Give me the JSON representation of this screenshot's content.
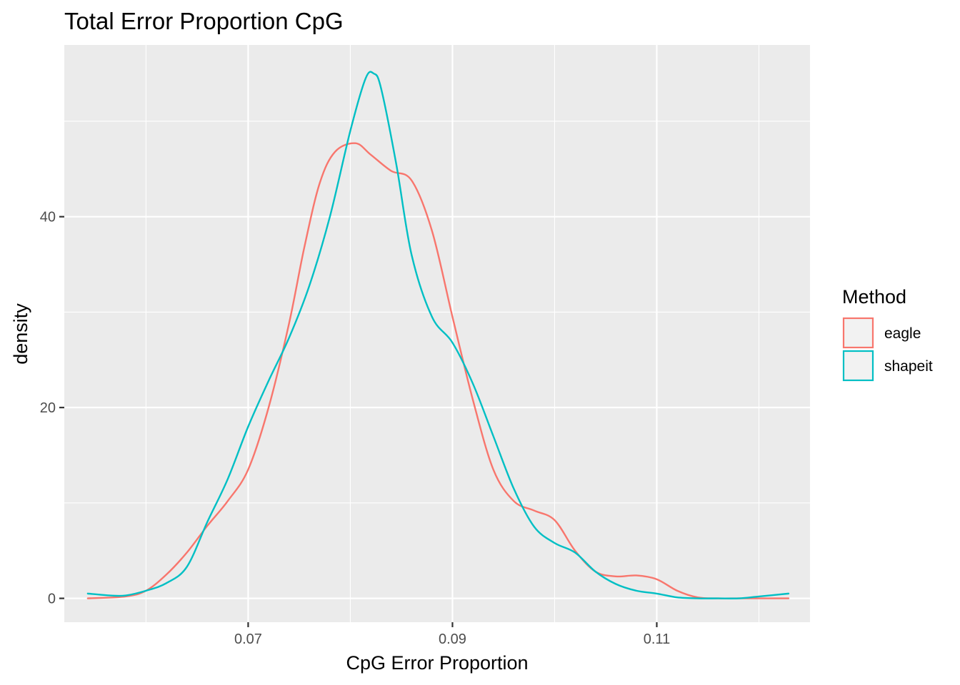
{
  "chart_data": {
    "type": "line",
    "title": "Total Error Proportion CpG",
    "xlabel": "CpG Error Proportion",
    "ylabel": "density",
    "xlim": [
      0.052,
      0.125
    ],
    "ylim": [
      -2.5,
      58
    ],
    "x_ticks": [
      0.07,
      0.09,
      0.11
    ],
    "x_tick_labels": [
      "0.07",
      "0.09",
      "0.11"
    ],
    "y_ticks": [
      0,
      20,
      40
    ],
    "y_tick_labels": [
      "0",
      "20",
      "40"
    ],
    "grid": true,
    "legend": {
      "title": "Method",
      "position": "right"
    },
    "series": [
      {
        "name": "eagle",
        "color": "#F8766D",
        "x": [
          0.0543,
          0.058,
          0.06,
          0.062,
          0.064,
          0.066,
          0.068,
          0.07,
          0.072,
          0.074,
          0.0755,
          0.077,
          0.0785,
          0.0805,
          0.082,
          0.084,
          0.086,
          0.088,
          0.09,
          0.092,
          0.094,
          0.096,
          0.098,
          0.1,
          0.102,
          0.104,
          0.106,
          0.108,
          0.11,
          0.112,
          0.114,
          0.116,
          0.118,
          0.12,
          0.1229
        ],
        "y": [
          0,
          0.2,
          0.8,
          2.5,
          4.8,
          7.6,
          10.2,
          13.5,
          20.0,
          28.8,
          36.8,
          43.5,
          46.8,
          47.7,
          46.5,
          44.8,
          43.8,
          38.5,
          29.5,
          20.8,
          13.5,
          10.2,
          9.2,
          8.2,
          5.0,
          2.8,
          2.3,
          2.4,
          2.0,
          0.8,
          0.1,
          0,
          0,
          0,
          0
        ]
      },
      {
        "name": "shapeit",
        "color": "#00BFC4",
        "x": [
          0.0543,
          0.0565,
          0.058,
          0.06,
          0.062,
          0.064,
          0.066,
          0.068,
          0.07,
          0.072,
          0.074,
          0.076,
          0.078,
          0.08,
          0.0815,
          0.0823,
          0.083,
          0.0845,
          0.086,
          0.088,
          0.09,
          0.092,
          0.094,
          0.096,
          0.098,
          0.1,
          0.102,
          0.104,
          0.106,
          0.108,
          0.11,
          0.112,
          0.114,
          0.116,
          0.118,
          0.12,
          0.1229
        ],
        "y": [
          0.5,
          0.3,
          0.3,
          0.8,
          1.6,
          3.3,
          8.0,
          12.5,
          18.0,
          22.8,
          27.3,
          32.8,
          40.0,
          49.0,
          54.5,
          55.0,
          53.5,
          45.5,
          36.0,
          29.5,
          26.8,
          22.5,
          17.0,
          11.5,
          7.5,
          5.8,
          4.8,
          2.8,
          1.5,
          0.8,
          0.5,
          0.1,
          0,
          0,
          0,
          0.2,
          0.5
        ]
      }
    ]
  }
}
